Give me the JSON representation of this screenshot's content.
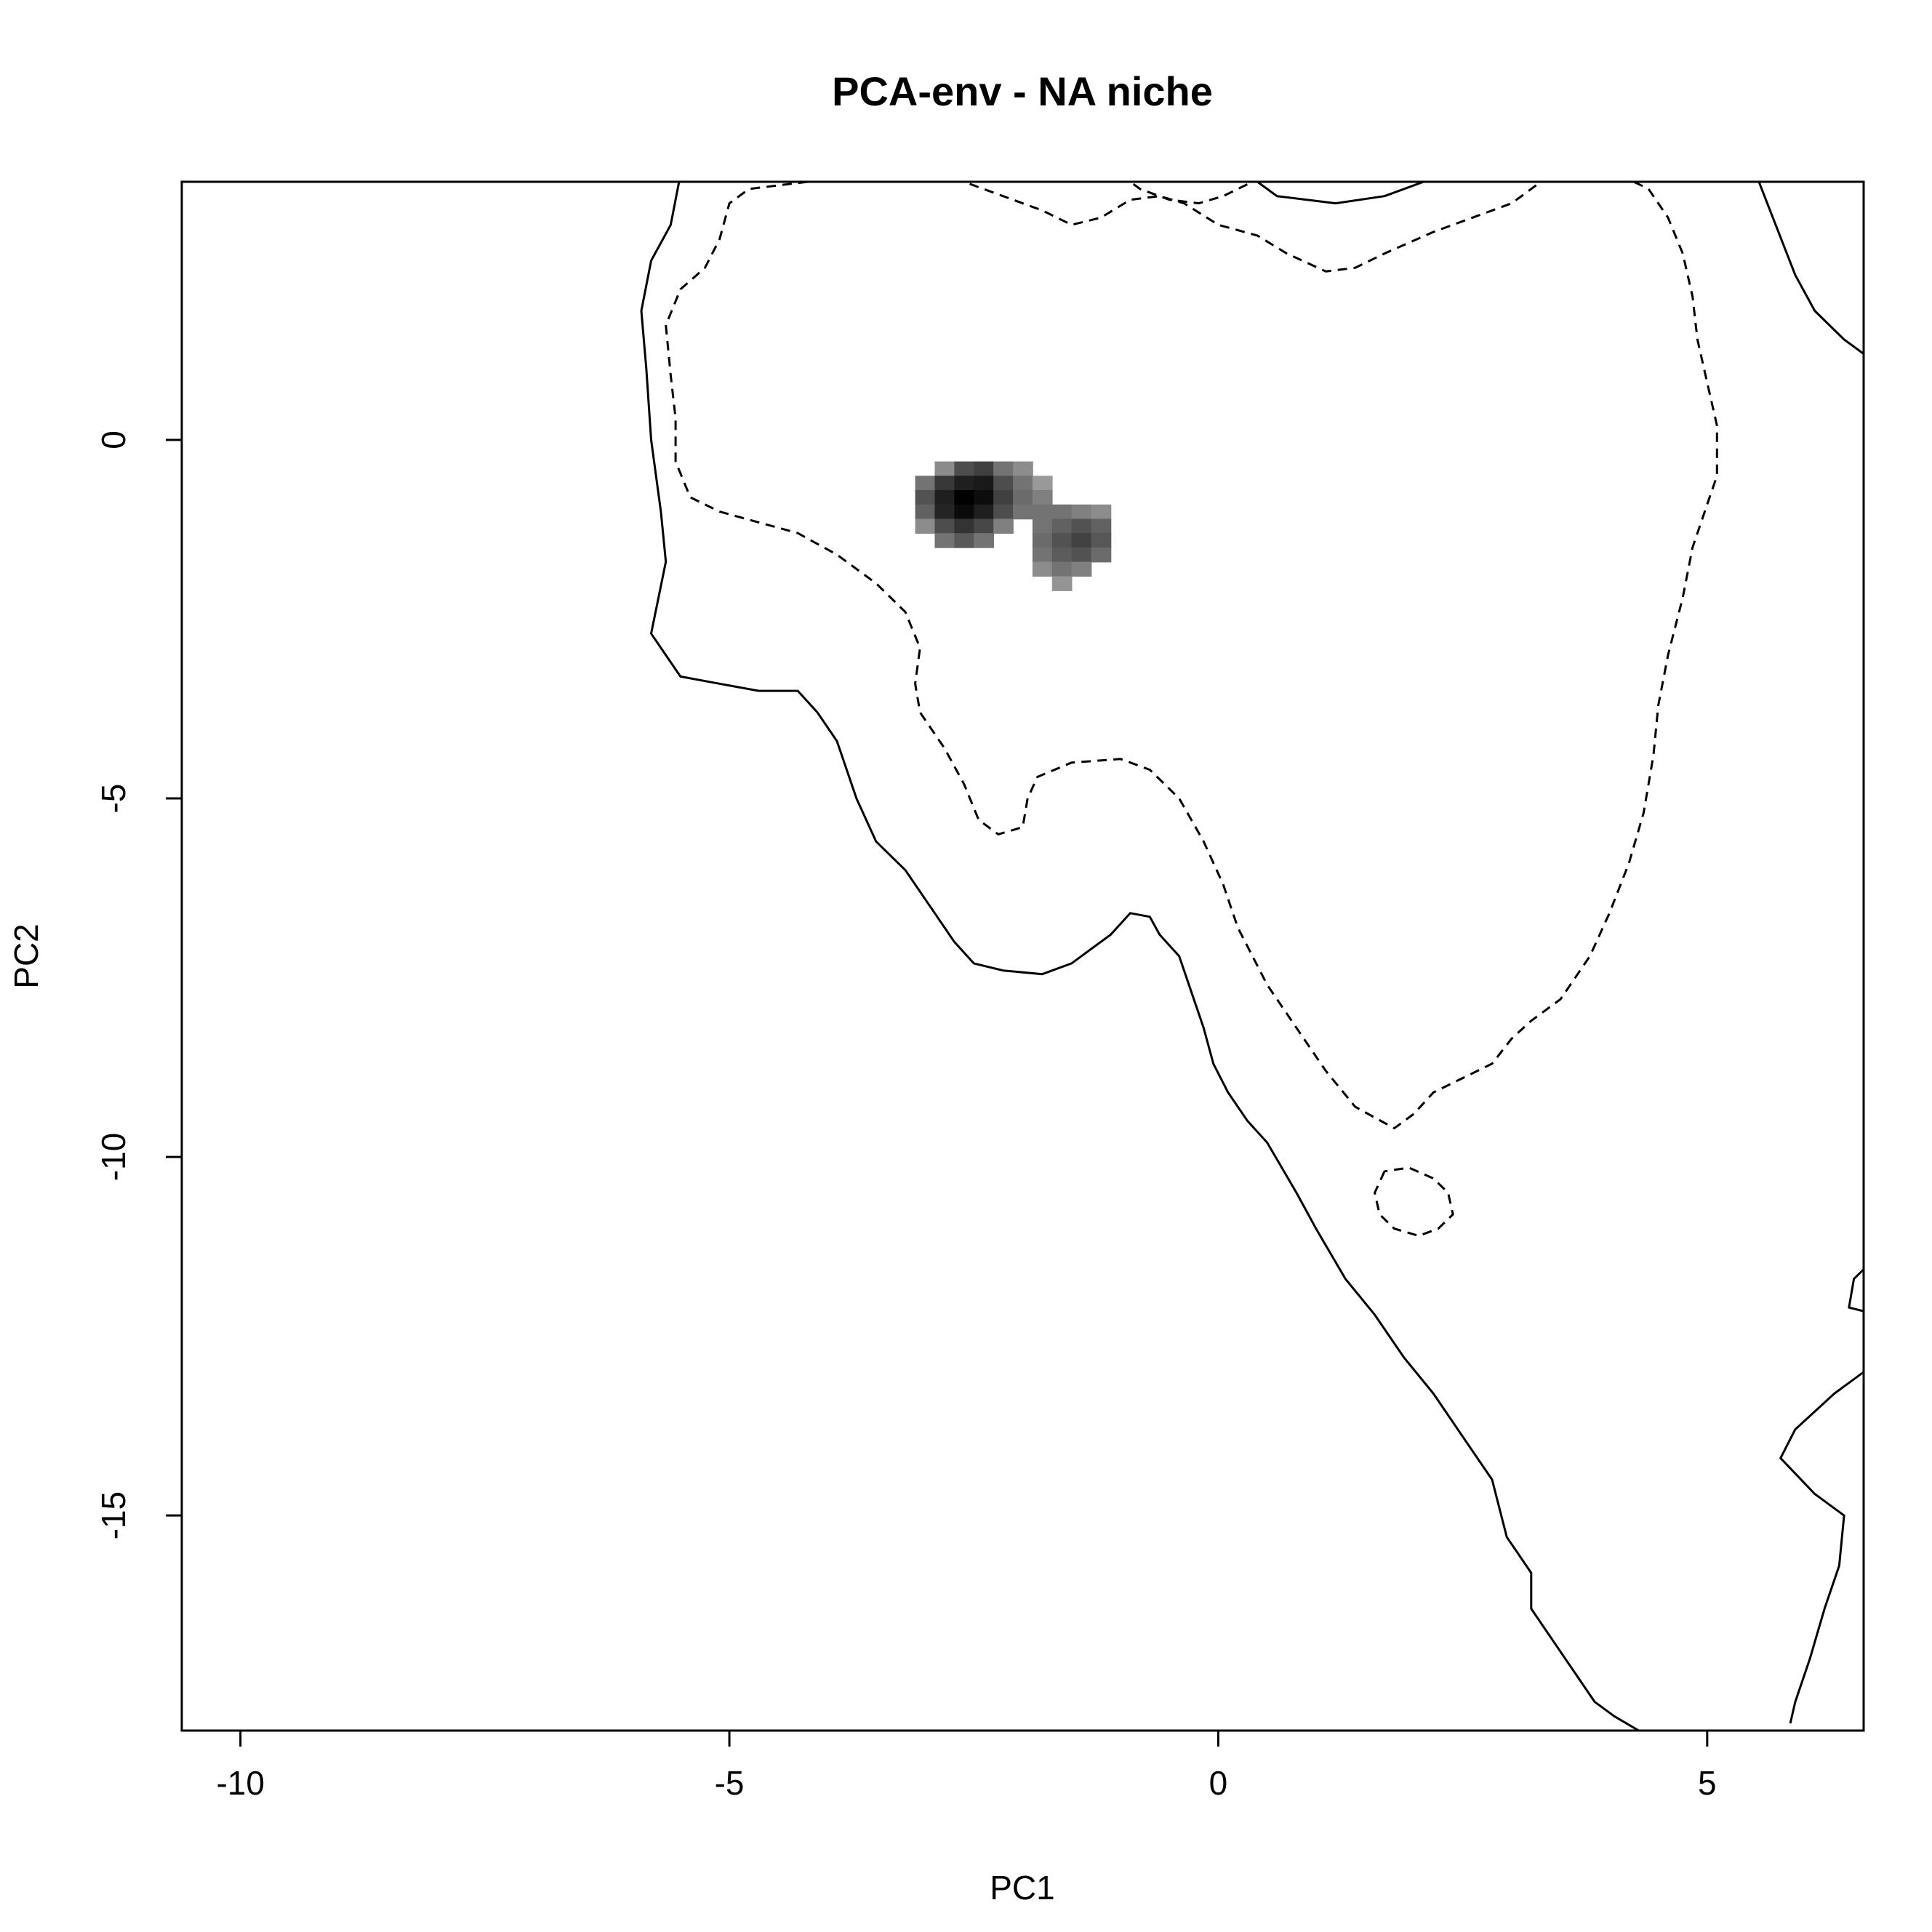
{
  "chart_data": {
    "type": "heatmap",
    "title": "PCA-env - NA niche",
    "xlabel": "PC1",
    "ylabel": "PC2",
    "xlim": [
      -10.6,
      6.6
    ],
    "ylim": [
      -18.0,
      3.6
    ],
    "x_ticks": [
      {
        "value": -10,
        "label": "-10"
      },
      {
        "value": -5,
        "label": "-5"
      },
      {
        "value": 0,
        "label": "0"
      },
      {
        "value": 5,
        "label": "5"
      }
    ],
    "y_ticks": [
      {
        "value": 0,
        "label": "0"
      },
      {
        "value": -5,
        "label": "-5"
      },
      {
        "value": -10,
        "label": "-10"
      },
      {
        "value": -15,
        "label": "-15"
      }
    ],
    "grid": false,
    "legend": "none",
    "colors": {
      "contour": "#000000",
      "frame": "#000000",
      "density_max": "#000000",
      "density_min": "#ffffff"
    },
    "density_cells": [
      {
        "x": -2.8,
        "y": -0.4,
        "d": 0.45
      },
      {
        "x": -2.6,
        "y": -0.4,
        "d": 0.7
      },
      {
        "x": -2.4,
        "y": -0.4,
        "d": 0.75
      },
      {
        "x": -2.2,
        "y": -0.4,
        "d": 0.55
      },
      {
        "x": -2.0,
        "y": -0.4,
        "d": 0.45
      },
      {
        "x": -3.0,
        "y": -0.6,
        "d": 0.55
      },
      {
        "x": -2.8,
        "y": -0.6,
        "d": 0.78
      },
      {
        "x": -2.6,
        "y": -0.6,
        "d": 0.88
      },
      {
        "x": -2.4,
        "y": -0.6,
        "d": 0.9
      },
      {
        "x": -2.2,
        "y": -0.6,
        "d": 0.7
      },
      {
        "x": -2.0,
        "y": -0.6,
        "d": 0.55
      },
      {
        "x": -1.8,
        "y": -0.6,
        "d": 0.4
      },
      {
        "x": -3.0,
        "y": -0.8,
        "d": 0.68
      },
      {
        "x": -2.8,
        "y": -0.8,
        "d": 0.88
      },
      {
        "x": -2.6,
        "y": -0.8,
        "d": 1.0
      },
      {
        "x": -2.4,
        "y": -0.8,
        "d": 0.95
      },
      {
        "x": -2.2,
        "y": -0.8,
        "d": 0.75
      },
      {
        "x": -2.0,
        "y": -0.8,
        "d": 0.58
      },
      {
        "x": -1.8,
        "y": -0.8,
        "d": 0.5
      },
      {
        "x": -3.0,
        "y": -1.0,
        "d": 0.62
      },
      {
        "x": -2.8,
        "y": -1.0,
        "d": 0.86
      },
      {
        "x": -2.6,
        "y": -1.0,
        "d": 0.96
      },
      {
        "x": -2.4,
        "y": -1.0,
        "d": 0.88
      },
      {
        "x": -2.2,
        "y": -1.0,
        "d": 0.7
      },
      {
        "x": -2.0,
        "y": -1.0,
        "d": 0.55
      },
      {
        "x": -1.8,
        "y": -1.0,
        "d": 0.55
      },
      {
        "x": -1.6,
        "y": -1.0,
        "d": 0.55
      },
      {
        "x": -1.4,
        "y": -1.0,
        "d": 0.5
      },
      {
        "x": -1.2,
        "y": -1.0,
        "d": 0.45
      },
      {
        "x": -3.0,
        "y": -1.2,
        "d": 0.45
      },
      {
        "x": -2.8,
        "y": -1.2,
        "d": 0.7
      },
      {
        "x": -2.6,
        "y": -1.2,
        "d": 0.8
      },
      {
        "x": -2.4,
        "y": -1.2,
        "d": 0.72
      },
      {
        "x": -2.2,
        "y": -1.2,
        "d": 0.5
      },
      {
        "x": -1.8,
        "y": -1.2,
        "d": 0.55
      },
      {
        "x": -1.6,
        "y": -1.2,
        "d": 0.62
      },
      {
        "x": -1.4,
        "y": -1.2,
        "d": 0.68
      },
      {
        "x": -1.2,
        "y": -1.2,
        "d": 0.62
      },
      {
        "x": -2.8,
        "y": -1.4,
        "d": 0.55
      },
      {
        "x": -2.6,
        "y": -1.4,
        "d": 0.65
      },
      {
        "x": -2.4,
        "y": -1.4,
        "d": 0.55
      },
      {
        "x": -1.8,
        "y": -1.4,
        "d": 0.58
      },
      {
        "x": -1.6,
        "y": -1.4,
        "d": 0.68
      },
      {
        "x": -1.4,
        "y": -1.4,
        "d": 0.74
      },
      {
        "x": -1.2,
        "y": -1.4,
        "d": 0.66
      },
      {
        "x": -1.8,
        "y": -1.6,
        "d": 0.55
      },
      {
        "x": -1.6,
        "y": -1.6,
        "d": 0.64
      },
      {
        "x": -1.4,
        "y": -1.6,
        "d": 0.68
      },
      {
        "x": -1.2,
        "y": -1.6,
        "d": 0.58
      },
      {
        "x": -1.8,
        "y": -1.8,
        "d": 0.45
      },
      {
        "x": -1.6,
        "y": -1.8,
        "d": 0.55
      },
      {
        "x": -1.4,
        "y": -1.8,
        "d": 0.5
      },
      {
        "x": -1.6,
        "y": -2.0,
        "d": 0.42
      }
    ],
    "contours": [
      {
        "style": "solid",
        "points": [
          [
            -5.5,
            3.7
          ],
          [
            -5.6,
            3.0
          ],
          [
            -5.8,
            2.5
          ],
          [
            -5.9,
            1.8
          ],
          [
            -5.85,
            1.0
          ],
          [
            -5.8,
            0.0
          ],
          [
            -5.7,
            -1.0
          ],
          [
            -5.65,
            -1.7
          ],
          [
            -5.8,
            -2.7
          ],
          [
            -5.5,
            -3.3
          ],
          [
            -5.1,
            -3.4
          ],
          [
            -4.7,
            -3.5
          ],
          [
            -4.3,
            -3.5
          ],
          [
            -4.1,
            -3.8
          ],
          [
            -3.9,
            -4.2
          ],
          [
            -3.7,
            -5.0
          ],
          [
            -3.5,
            -5.6
          ],
          [
            -3.2,
            -6.0
          ],
          [
            -2.9,
            -6.6
          ],
          [
            -2.7,
            -7.0
          ],
          [
            -2.5,
            -7.3
          ],
          [
            -2.2,
            -7.4
          ],
          [
            -1.8,
            -7.45
          ],
          [
            -1.5,
            -7.3
          ],
          [
            -1.3,
            -7.1
          ],
          [
            -1.1,
            -6.9
          ],
          [
            -0.9,
            -6.6
          ],
          [
            -0.7,
            -6.65
          ],
          [
            -0.6,
            -6.9
          ],
          [
            -0.4,
            -7.2
          ],
          [
            -0.3,
            -7.6
          ],
          [
            -0.15,
            -8.2
          ],
          [
            -0.05,
            -8.7
          ],
          [
            0.1,
            -9.1
          ],
          [
            0.3,
            -9.5
          ],
          [
            0.5,
            -9.8
          ],
          [
            0.8,
            -10.5
          ],
          [
            1.0,
            -11.0
          ],
          [
            1.3,
            -11.7
          ],
          [
            1.6,
            -12.2
          ],
          [
            1.9,
            -12.8
          ],
          [
            2.2,
            -13.3
          ],
          [
            2.5,
            -13.9
          ],
          [
            2.8,
            -14.5
          ],
          [
            2.95,
            -15.3
          ],
          [
            3.2,
            -15.8
          ],
          [
            3.2,
            -16.3
          ],
          [
            3.45,
            -16.8
          ],
          [
            3.7,
            -17.3
          ],
          [
            3.85,
            -17.6
          ],
          [
            4.05,
            -17.8
          ],
          [
            4.3,
            -18.0
          ]
        ]
      },
      {
        "style": "solid",
        "points": [
          [
            0.3,
            3.7
          ],
          [
            0.6,
            3.4
          ],
          [
            1.2,
            3.3
          ],
          [
            1.7,
            3.4
          ],
          [
            2.3,
            3.7
          ]
        ]
      },
      {
        "style": "solid",
        "points": [
          [
            5.5,
            3.7
          ],
          [
            5.7,
            3.0
          ],
          [
            5.9,
            2.3
          ],
          [
            6.1,
            1.8
          ],
          [
            6.4,
            1.4
          ],
          [
            6.7,
            1.1
          ],
          [
            6.8,
            0.9
          ],
          [
            6.7,
            0.5
          ],
          [
            6.8,
            0.0
          ],
          [
            6.8,
            -0.5
          ],
          [
            6.9,
            -1.0
          ],
          [
            7.2,
            -1.2
          ],
          [
            7.5,
            -1.5
          ],
          [
            7.55,
            -2.0
          ],
          [
            7.2,
            -2.5
          ],
          [
            7.0,
            -2.8
          ],
          [
            7.1,
            -3.2
          ],
          [
            7.15,
            -3.6
          ],
          [
            7.25,
            -4.1
          ],
          [
            7.2,
            -4.5
          ],
          [
            7.05,
            -4.8
          ],
          [
            7.05,
            -5.4
          ],
          [
            7.0,
            -5.9
          ],
          [
            7.3,
            -6.2
          ],
          [
            7.6,
            -6.4
          ],
          [
            7.8,
            -6.6
          ],
          [
            8.0,
            -6.9
          ]
        ]
      },
      {
        "style": "solid",
        "points": [
          [
            8.0,
            -6.8
          ],
          [
            7.7,
            -6.9
          ],
          [
            7.5,
            -7.0
          ],
          [
            7.2,
            -7.1
          ],
          [
            7.0,
            -7.4
          ],
          [
            6.75,
            -7.9
          ],
          [
            6.7,
            -8.3
          ],
          [
            6.8,
            -8.8
          ],
          [
            6.95,
            -9.4
          ],
          [
            7.0,
            -10.0
          ],
          [
            6.95,
            -10.7
          ],
          [
            6.8,
            -11.3
          ],
          [
            6.5,
            -11.7
          ],
          [
            6.45,
            -12.1
          ],
          [
            6.75,
            -12.2
          ],
          [
            7.2,
            -12.2
          ],
          [
            7.45,
            -12.4
          ],
          [
            7.1,
            -12.6
          ],
          [
            6.9,
            -12.8
          ],
          [
            6.7,
            -12.9
          ],
          [
            6.3,
            -13.3
          ],
          [
            5.9,
            -13.8
          ],
          [
            5.75,
            -14.2
          ],
          [
            6.1,
            -14.7
          ],
          [
            6.4,
            -15.0
          ],
          [
            6.35,
            -15.7
          ],
          [
            6.2,
            -16.3
          ],
          [
            6.05,
            -17.0
          ],
          [
            5.9,
            -17.6
          ],
          [
            5.85,
            -17.9
          ]
        ]
      },
      {
        "style": "dashed",
        "points": [
          [
            -1.0,
            3.7
          ],
          [
            -0.8,
            3.5
          ],
          [
            -0.5,
            3.35
          ],
          [
            -0.2,
            3.3
          ],
          [
            0.05,
            3.4
          ],
          [
            0.35,
            3.6
          ],
          [
            0.7,
            3.7
          ]
        ]
      },
      {
        "style": "dashed",
        "points": [
          [
            -4.2,
            3.6
          ],
          [
            -4.8,
            3.5
          ],
          [
            -5.0,
            3.3
          ],
          [
            -5.1,
            2.8
          ],
          [
            -5.25,
            2.4
          ],
          [
            -5.5,
            2.1
          ],
          [
            -5.65,
            1.6
          ],
          [
            -5.6,
            0.9
          ],
          [
            -5.55,
            0.3
          ],
          [
            -5.55,
            -0.3
          ],
          [
            -5.4,
            -0.8
          ],
          [
            -5.1,
            -1.0
          ],
          [
            -4.7,
            -1.15
          ],
          [
            -4.3,
            -1.3
          ],
          [
            -3.9,
            -1.6
          ],
          [
            -3.5,
            -2.0
          ],
          [
            -3.2,
            -2.4
          ],
          [
            -3.05,
            -2.9
          ],
          [
            -3.1,
            -3.4
          ],
          [
            -3.05,
            -3.8
          ],
          [
            -2.8,
            -4.3
          ],
          [
            -2.6,
            -4.8
          ],
          [
            -2.45,
            -5.3
          ],
          [
            -2.25,
            -5.5
          ],
          [
            -2.0,
            -5.4
          ],
          [
            -1.95,
            -5.0
          ],
          [
            -1.85,
            -4.7
          ],
          [
            -1.5,
            -4.5
          ],
          [
            -1.0,
            -4.45
          ],
          [
            -0.7,
            -4.6
          ],
          [
            -0.4,
            -5.0
          ],
          [
            -0.15,
            -5.6
          ],
          [
            0.05,
            -6.2
          ],
          [
            0.2,
            -6.8
          ],
          [
            0.5,
            -7.6
          ],
          [
            0.8,
            -8.2
          ],
          [
            1.1,
            -8.8
          ],
          [
            1.4,
            -9.3
          ],
          [
            1.8,
            -9.6
          ],
          [
            2.0,
            -9.4
          ],
          [
            2.2,
            -9.1
          ],
          [
            2.5,
            -8.9
          ],
          [
            2.8,
            -8.7
          ],
          [
            3.0,
            -8.35
          ],
          [
            3.2,
            -8.1
          ],
          [
            3.5,
            -7.8
          ],
          [
            3.8,
            -7.2
          ],
          [
            4.0,
            -6.6
          ],
          [
            4.2,
            -5.9
          ],
          [
            4.35,
            -5.2
          ],
          [
            4.45,
            -4.4
          ],
          [
            4.5,
            -3.7
          ],
          [
            4.6,
            -3.0
          ],
          [
            4.75,
            -2.2
          ],
          [
            4.85,
            -1.5
          ],
          [
            5.0,
            -0.9
          ],
          [
            5.1,
            -0.5
          ],
          [
            5.1,
            0.2
          ],
          [
            5.0,
            0.8
          ],
          [
            4.9,
            1.4
          ],
          [
            4.85,
            2.0
          ],
          [
            4.75,
            2.6
          ],
          [
            4.6,
            3.1
          ],
          [
            4.4,
            3.5
          ],
          [
            4.1,
            3.7
          ],
          [
            3.7,
            3.75
          ],
          [
            3.3,
            3.6
          ],
          [
            3.0,
            3.3
          ],
          [
            2.6,
            3.1
          ],
          [
            2.2,
            2.9
          ],
          [
            1.7,
            2.6
          ],
          [
            1.4,
            2.4
          ],
          [
            1.1,
            2.35
          ],
          [
            0.7,
            2.6
          ],
          [
            0.4,
            2.85
          ],
          [
            0.0,
            3.0
          ],
          [
            -0.35,
            3.3
          ],
          [
            -0.6,
            3.4
          ],
          [
            -0.9,
            3.35
          ],
          [
            -1.2,
            3.1
          ],
          [
            -1.5,
            3.0
          ],
          [
            -1.8,
            3.2
          ],
          [
            -2.1,
            3.35
          ],
          [
            -2.4,
            3.5
          ],
          [
            -2.7,
            3.65
          ],
          [
            -3.0,
            3.75
          ]
        ]
      },
      {
        "style": "dashed",
        "points": [
          [
            1.7,
            -10.2
          ],
          [
            1.6,
            -10.5
          ],
          [
            1.65,
            -10.8
          ],
          [
            1.8,
            -11.0
          ],
          [
            2.05,
            -11.1
          ],
          [
            2.25,
            -11.0
          ],
          [
            2.4,
            -10.8
          ],
          [
            2.35,
            -10.5
          ],
          [
            2.2,
            -10.3
          ],
          [
            1.95,
            -10.15
          ],
          [
            1.7,
            -10.2
          ]
        ]
      }
    ]
  }
}
